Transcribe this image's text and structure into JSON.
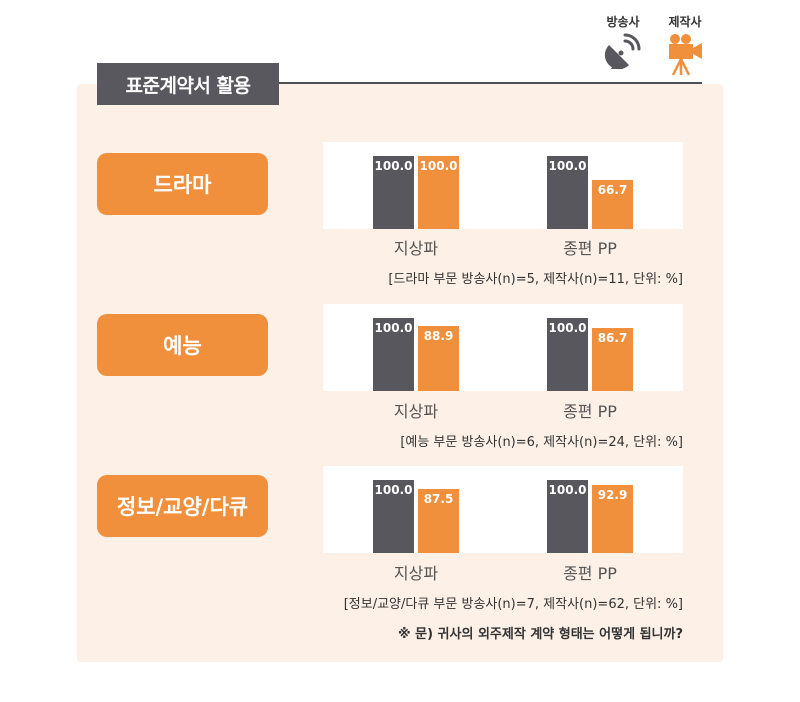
{
  "title": "표준계약서 활용",
  "legend": [
    {
      "label": "방송사",
      "icon": "satellite-dish-icon",
      "color": "#57575d"
    },
    {
      "label": "제작사",
      "icon": "movie-camera-icon",
      "color": "#f08f3c"
    }
  ],
  "colors": {
    "broadcaster": "#57575d",
    "producer": "#f08f3c",
    "panel_bg": "#fdf0e7"
  },
  "chart_data": [
    {
      "type": "bar",
      "title": "드라마",
      "categories": [
        "지상파",
        "종편 PP"
      ],
      "series": [
        {
          "name": "방송사",
          "values": [
            100.0,
            100.0
          ]
        },
        {
          "name": "제작사",
          "values": [
            100.0,
            66.7
          ]
        }
      ],
      "value_labels": [
        [
          "100.0",
          "100.0"
        ],
        [
          "100.0",
          "66.7"
        ]
      ],
      "ylim": [
        0,
        100
      ],
      "note": "[드라마 부문 방송사(n)=5, 제작사(n)=11, 단위: %]"
    },
    {
      "type": "bar",
      "title": "예능",
      "categories": [
        "지상파",
        "종편 PP"
      ],
      "series": [
        {
          "name": "방송사",
          "values": [
            100.0,
            100.0
          ]
        },
        {
          "name": "제작사",
          "values": [
            88.9,
            86.7
          ]
        }
      ],
      "value_labels": [
        [
          "100.0",
          "100.0"
        ],
        [
          "88.9",
          "86.7"
        ]
      ],
      "ylim": [
        0,
        100
      ],
      "note": "[예능 부문 방송사(n)=6, 제작사(n)=24, 단위: %]"
    },
    {
      "type": "bar",
      "title": "정보/교양/다큐",
      "categories": [
        "지상파",
        "종편 PP"
      ],
      "series": [
        {
          "name": "방송사",
          "values": [
            100.0,
            100.0
          ]
        },
        {
          "name": "제작사",
          "values": [
            87.5,
            92.9
          ]
        }
      ],
      "value_labels": [
        [
          "100.0",
          "100.0"
        ],
        [
          "87.5",
          "92.9"
        ]
      ],
      "ylim": [
        0,
        100
      ],
      "note": "[정보/교양/다큐 부문 방송사(n)=7, 제작사(n)=62, 단위: %]"
    }
  ],
  "question": "※ 문) 귀사의 외주제작 계약 형태는 어떻게 됩니까?"
}
